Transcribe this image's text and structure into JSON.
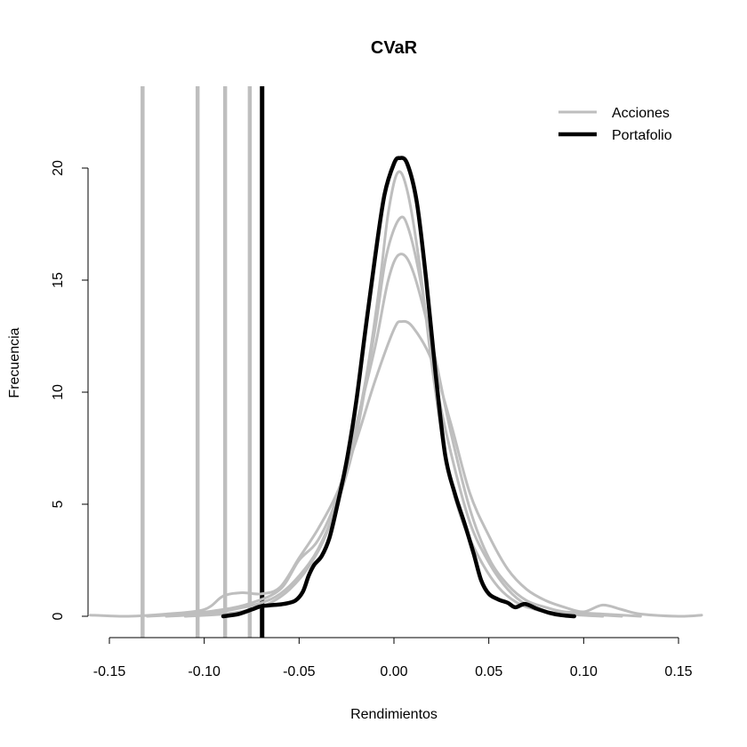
{
  "chart_data": {
    "type": "line",
    "title": "CVaR",
    "xlabel": "Rendimientos",
    "ylabel": "Frecuencia",
    "xlim": [
      -0.15,
      0.15
    ],
    "ylim": [
      0,
      20
    ],
    "x_ticks": [
      -0.15,
      -0.1,
      -0.05,
      0.0,
      0.05,
      0.1,
      0.15
    ],
    "x_tick_labels": [
      "-0.15",
      "-0.10",
      "-0.05",
      "0.00",
      "0.05",
      "0.10",
      "0.15"
    ],
    "y_ticks": [
      0,
      5,
      10,
      15,
      20
    ],
    "y_tick_labels": [
      "0",
      "5",
      "10",
      "15",
      "20"
    ],
    "grid": false,
    "legend": {
      "position": "top-right",
      "entries": [
        {
          "label": "Acciones",
          "color": "#BEBEBE"
        },
        {
          "label": "Portafolio",
          "color": "#000000"
        }
      ]
    },
    "colors": {
      "acciones": "#BEBEBE",
      "portafolio": "#000000"
    },
    "series": [
      {
        "group": "Acciones",
        "points": [
          [
            -0.16,
            0.05
          ],
          [
            -0.14,
            0.0
          ],
          [
            -0.12,
            0.1
          ],
          [
            -0.1,
            0.3
          ],
          [
            -0.09,
            0.9
          ],
          [
            -0.08,
            1.05
          ],
          [
            -0.07,
            1.0
          ],
          [
            -0.06,
            1.3
          ],
          [
            -0.05,
            2.6
          ],
          [
            -0.04,
            3.9
          ],
          [
            -0.03,
            5.5
          ],
          [
            -0.02,
            7.8
          ],
          [
            -0.01,
            10.5
          ],
          [
            0.0,
            12.8
          ],
          [
            0.004,
            13.15
          ],
          [
            0.01,
            12.9
          ],
          [
            0.02,
            11.4
          ],
          [
            0.03,
            8.6
          ],
          [
            0.04,
            5.5
          ],
          [
            0.05,
            3.6
          ],
          [
            0.06,
            2.1
          ],
          [
            0.07,
            1.2
          ],
          [
            0.08,
            0.7
          ],
          [
            0.09,
            0.4
          ],
          [
            0.1,
            0.2
          ],
          [
            0.11,
            0.5
          ],
          [
            0.12,
            0.3
          ],
          [
            0.13,
            0.1
          ],
          [
            0.15,
            0.0
          ],
          [
            0.165,
            0.05
          ]
        ]
      },
      {
        "group": "Acciones",
        "points": [
          [
            -0.13,
            0.0
          ],
          [
            -0.11,
            0.1
          ],
          [
            -0.09,
            0.3
          ],
          [
            -0.075,
            0.6
          ],
          [
            -0.06,
            1.2
          ],
          [
            -0.05,
            2.5
          ],
          [
            -0.04,
            3.4
          ],
          [
            -0.03,
            5.3
          ],
          [
            -0.02,
            8.5
          ],
          [
            -0.01,
            12.0
          ],
          [
            -0.003,
            15.0
          ],
          [
            0.003,
            16.15
          ],
          [
            0.01,
            15.4
          ],
          [
            0.02,
            12.2
          ],
          [
            0.03,
            8.2
          ],
          [
            0.04,
            4.8
          ],
          [
            0.05,
            2.6
          ],
          [
            0.06,
            1.4
          ],
          [
            0.07,
            0.7
          ],
          [
            0.08,
            0.4
          ],
          [
            0.09,
            0.2
          ],
          [
            0.11,
            0.1
          ],
          [
            0.13,
            0.0
          ]
        ]
      },
      {
        "group": "Acciones",
        "points": [
          [
            -0.12,
            0.0
          ],
          [
            -0.1,
            0.1
          ],
          [
            -0.085,
            0.3
          ],
          [
            -0.07,
            0.6
          ],
          [
            -0.06,
            1.0
          ],
          [
            -0.05,
            1.8
          ],
          [
            -0.04,
            3.0
          ],
          [
            -0.03,
            5.0
          ],
          [
            -0.02,
            8.0
          ],
          [
            -0.01,
            12.8
          ],
          [
            -0.004,
            16.1
          ],
          [
            0.003,
            17.75
          ],
          [
            0.008,
            17.2
          ],
          [
            0.015,
            14.5
          ],
          [
            0.022,
            10.5
          ],
          [
            0.03,
            7.3
          ],
          [
            0.04,
            4.2
          ],
          [
            0.05,
            2.4
          ],
          [
            0.06,
            1.2
          ],
          [
            0.07,
            0.5
          ],
          [
            0.08,
            0.2
          ],
          [
            0.1,
            0.1
          ],
          [
            0.12,
            0.0
          ]
        ]
      },
      {
        "group": "Acciones",
        "points": [
          [
            -0.11,
            0.0
          ],
          [
            -0.09,
            0.1
          ],
          [
            -0.075,
            0.3
          ],
          [
            -0.065,
            0.6
          ],
          [
            -0.055,
            1.2
          ],
          [
            -0.045,
            2.2
          ],
          [
            -0.035,
            3.8
          ],
          [
            -0.025,
            6.5
          ],
          [
            -0.015,
            10.5
          ],
          [
            -0.008,
            14.5
          ],
          [
            -0.003,
            18.0
          ],
          [
            0.002,
            19.8
          ],
          [
            0.007,
            19.0
          ],
          [
            0.013,
            16.0
          ],
          [
            0.02,
            11.2
          ],
          [
            0.027,
            7.2
          ],
          [
            0.035,
            4.5
          ],
          [
            0.045,
            2.6
          ],
          [
            0.055,
            1.3
          ],
          [
            0.065,
            0.6
          ],
          [
            0.075,
            0.3
          ],
          [
            0.09,
            0.1
          ],
          [
            0.11,
            0.0
          ]
        ]
      },
      {
        "group": "Portafolio",
        "points": [
          [
            -0.09,
            0.0
          ],
          [
            -0.082,
            0.1
          ],
          [
            -0.075,
            0.3
          ],
          [
            -0.07,
            0.45
          ],
          [
            -0.064,
            0.5
          ],
          [
            -0.058,
            0.55
          ],
          [
            -0.052,
            0.7
          ],
          [
            -0.048,
            1.1
          ],
          [
            -0.045,
            1.8
          ],
          [
            -0.042,
            2.3
          ],
          [
            -0.038,
            2.7
          ],
          [
            -0.034,
            3.5
          ],
          [
            -0.03,
            4.9
          ],
          [
            -0.025,
            6.9
          ],
          [
            -0.02,
            9.5
          ],
          [
            -0.015,
            12.8
          ],
          [
            -0.01,
            16.0
          ],
          [
            -0.005,
            18.8
          ],
          [
            0.0,
            20.2
          ],
          [
            0.003,
            20.45
          ],
          [
            0.007,
            20.2
          ],
          [
            0.012,
            18.5
          ],
          [
            0.017,
            15.0
          ],
          [
            0.022,
            10.8
          ],
          [
            0.027,
            7.2
          ],
          [
            0.032,
            5.5
          ],
          [
            0.037,
            4.2
          ],
          [
            0.042,
            2.8
          ],
          [
            0.046,
            1.6
          ],
          [
            0.05,
            1.0
          ],
          [
            0.055,
            0.75
          ],
          [
            0.06,
            0.6
          ],
          [
            0.064,
            0.4
          ],
          [
            0.069,
            0.55
          ],
          [
            0.075,
            0.35
          ],
          [
            0.082,
            0.15
          ],
          [
            0.088,
            0.05
          ],
          [
            0.095,
            0.0
          ]
        ]
      }
    ],
    "vertical_lines": [
      {
        "x": -0.1325,
        "group": "Acciones"
      },
      {
        "x": -0.1035,
        "group": "Acciones"
      },
      {
        "x": -0.089,
        "group": "Acciones"
      },
      {
        "x": -0.076,
        "group": "Acciones"
      },
      {
        "x": -0.0695,
        "group": "Portafolio"
      }
    ]
  }
}
